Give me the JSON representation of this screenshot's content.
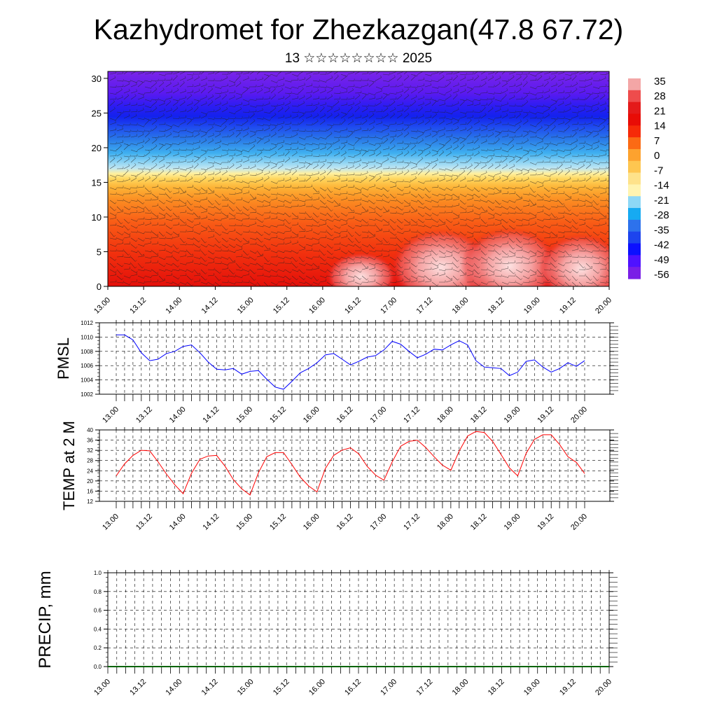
{
  "title": "Kazhydromet for Zhezkazgan(47.8 67.72)",
  "subtitle": "13 ☆☆☆☆☆☆☆☆ 2025",
  "colors": {
    "pmsl_line": "#0000ff",
    "temp_line": "#ff0000",
    "precip_line": "#006400",
    "colorbar": [
      "#7a1fe6",
      "#4f12ff",
      "#0c10ff",
      "#1d44ee",
      "#2d72ec",
      "#16aaf2",
      "#8ed8f6",
      "#fff4b0",
      "#fee28a",
      "#fec650",
      "#fda22e",
      "#fb6a14",
      "#f62a08",
      "#e80c06",
      "#e41a1a",
      "#ee4c4c",
      "#f3a6a6"
    ]
  },
  "chart_data": [
    {
      "type": "heatmap",
      "title": "",
      "xlabel": "",
      "ylabel": "",
      "x_ticks": [
        "13.00",
        "13.12",
        "14.00",
        "14.12",
        "15.00",
        "15.12",
        "16.00",
        "16.12",
        "17.00",
        "17.12",
        "18.00",
        "18.12",
        "19.00",
        "19.12",
        "20.00"
      ],
      "y_ticks": [
        0,
        5,
        10,
        15,
        20,
        25,
        30
      ],
      "ylim": [
        0,
        31
      ],
      "colorbar_labels": [
        "35",
        "28",
        "21",
        "14",
        "7",
        "0",
        "-7",
        "-14",
        "-21",
        "-28",
        "-35",
        "-42",
        "-49",
        "-56"
      ],
      "overlay": "wind barbs"
    },
    {
      "type": "line",
      "ylabel": "PMSL",
      "x_ticks": [
        "13.00",
        "13.12",
        "14.00",
        "14.12",
        "15.00",
        "15.12",
        "16.00",
        "16.12",
        "17.00",
        "17.12",
        "18.00",
        "18.12",
        "19.00",
        "19.12",
        "20.00"
      ],
      "y_ticks": [
        1002,
        1004,
        1006,
        1008,
        1010,
        1012
      ],
      "ylim": [
        1002,
        1012
      ],
      "series": [
        {
          "values": [
            1010.3,
            1010.3,
            1009.6,
            1007.8,
            1006.7,
            1006.9,
            1007.7,
            1008.0,
            1008.7,
            1008.9,
            1007.8,
            1006.5,
            1005.5,
            1005.4,
            1005.6,
            1004.8,
            1005.2,
            1005.3,
            1004.1,
            1003.0,
            1002.7,
            1003.8,
            1005.0,
            1005.6,
            1006.4,
            1007.5,
            1007.7,
            1006.9,
            1006.1,
            1006.6,
            1007.2,
            1007.4,
            1008.2,
            1009.4,
            1009.0,
            1008.0,
            1007.1,
            1007.6,
            1008.3,
            1008.2,
            1008.9,
            1009.5,
            1008.9,
            1006.7,
            1005.8,
            1005.7,
            1005.6,
            1004.6,
            1005.1,
            1006.6,
            1006.8,
            1005.8,
            1005.1,
            1005.6,
            1006.4,
            1005.9,
            1006.7
          ]
        }
      ]
    },
    {
      "type": "line",
      "ylabel": "TEMP at 2 M",
      "x_ticks": [
        "13.00",
        "13.12",
        "14.00",
        "14.12",
        "15.00",
        "15.12",
        "16.00",
        "16.12",
        "17.00",
        "17.12",
        "18.00",
        "18.12",
        "19.00",
        "19.12",
        "20.00"
      ],
      "y_ticks": [
        12,
        16,
        20,
        24,
        28,
        32,
        36,
        40
      ],
      "ylim": [
        12,
        40
      ],
      "series": [
        {
          "values": [
            22.0,
            26.7,
            30.0,
            32.0,
            31.8,
            27.5,
            22.7,
            18.5,
            15.0,
            23.0,
            28.5,
            29.8,
            30.0,
            25.8,
            20.5,
            16.9,
            14.5,
            23.2,
            29.5,
            31.1,
            31.1,
            26.4,
            21.5,
            18.0,
            15.7,
            24.9,
            30.0,
            32.1,
            33.0,
            30.6,
            25.7,
            22.3,
            20.3,
            27.5,
            33.6,
            35.5,
            36.0,
            33.1,
            29.5,
            26.2,
            24.2,
            31.7,
            37.6,
            39.4,
            39.0,
            35.5,
            30.4,
            25.1,
            22.0,
            30.8,
            36.3,
            38.1,
            38.1,
            34.3,
            29.5,
            27.3,
            22.9
          ]
        }
      ]
    },
    {
      "type": "line",
      "ylabel": "PRECIP, mm",
      "x_ticks": [
        "13.00",
        "13.12",
        "14.00",
        "14.12",
        "15.00",
        "15.12",
        "16.00",
        "16.12",
        "17.00",
        "17.12",
        "18.00",
        "18.12",
        "19.00",
        "19.12",
        "20.00"
      ],
      "y_ticks": [
        "0.0",
        "0.2",
        "0.4",
        "0.6",
        "0.8",
        "1.0"
      ],
      "ylim": [
        0,
        1
      ],
      "series": [
        {
          "values": [
            0,
            0,
            0,
            0,
            0,
            0,
            0,
            0,
            0,
            0,
            0,
            0,
            0,
            0,
            0,
            0,
            0,
            0,
            0,
            0,
            0,
            0,
            0,
            0,
            0,
            0,
            0,
            0,
            0,
            0,
            0,
            0,
            0,
            0,
            0,
            0,
            0,
            0,
            0,
            0,
            0,
            0,
            0,
            0,
            0,
            0,
            0,
            0,
            0,
            0,
            0,
            0,
            0,
            0,
            0,
            0,
            0
          ]
        }
      ]
    }
  ]
}
